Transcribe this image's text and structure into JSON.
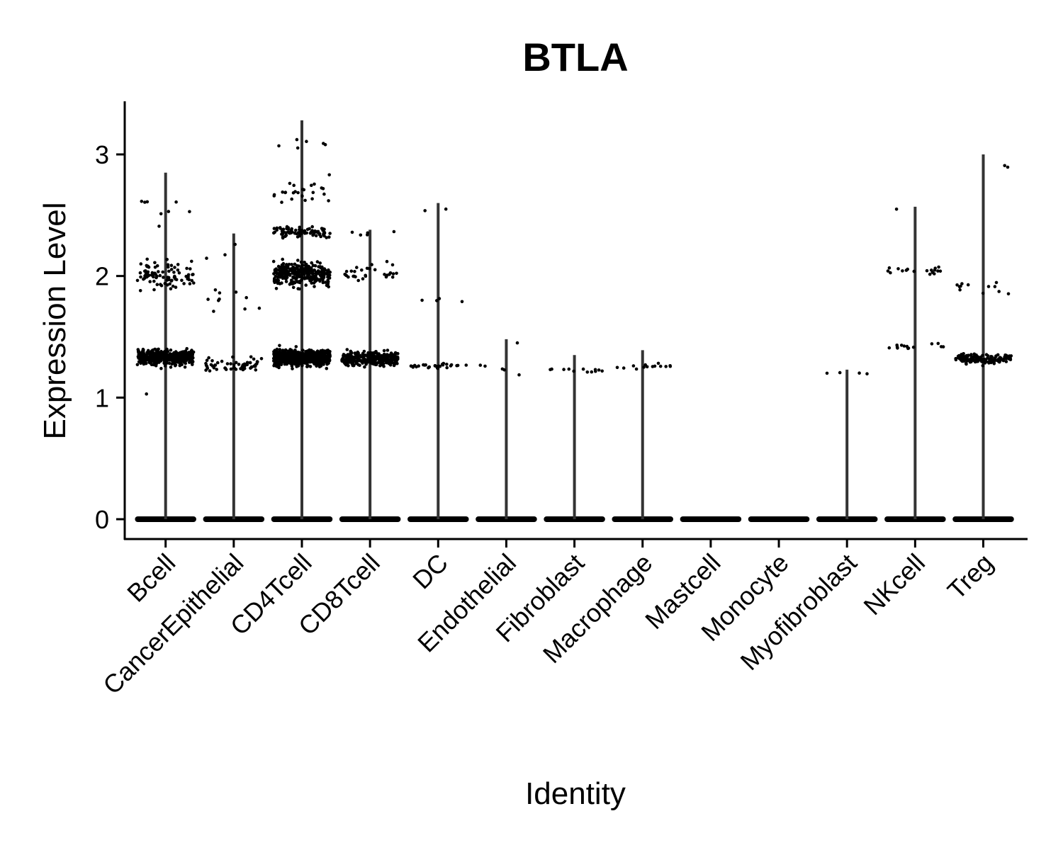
{
  "chart_data": {
    "type": "scatter",
    "subtype": "violin-jitter",
    "title": "BTLA",
    "xlabel": "Identity",
    "ylabel": "Expression Level",
    "ylim": [
      -0.15,
      3.45
    ],
    "yticks": [
      0,
      1,
      2,
      3
    ],
    "grid": false,
    "legend": "none",
    "point_color": "#000000",
    "violin_color": "#333333",
    "categories": [
      "Bcell",
      "CancerEpithelial",
      "CD4Tcell",
      "CD8Tcell",
      "DC",
      "Endothelial",
      "Fibroblast",
      "Macrophage",
      "Mastcell",
      "Monocyte",
      "Myofibroblast",
      "NKcell",
      "Treg"
    ],
    "violin_max": [
      2.85,
      2.35,
      3.28,
      2.38,
      2.6,
      1.48,
      1.35,
      1.39,
      0.0,
      0.0,
      1.23,
      2.57,
      3.0
    ],
    "expression_clusters": [
      [
        {
          "y": 1.33,
          "n": 440,
          "s": 0.12
        },
        {
          "y": 2.0,
          "n": 90,
          "s": 0.22
        },
        {
          "y": 2.55,
          "n": 8,
          "s": 0.25
        },
        {
          "y": 1.03,
          "n": 1,
          "s": 0
        }
      ],
      [
        {
          "y": 1.27,
          "n": 60,
          "s": 0.09
        },
        {
          "y": 1.8,
          "n": 10,
          "s": 0.2
        },
        {
          "y": 2.2,
          "n": 3,
          "s": 0.15
        }
      ],
      [
        {
          "y": 1.33,
          "n": 700,
          "s": 0.12
        },
        {
          "y": 2.02,
          "n": 320,
          "s": 0.18
        },
        {
          "y": 2.36,
          "n": 90,
          "s": 0.08
        },
        {
          "y": 2.7,
          "n": 25,
          "s": 0.2
        },
        {
          "y": 3.1,
          "n": 6,
          "s": 0.15
        }
      ],
      [
        {
          "y": 1.32,
          "n": 300,
          "s": 0.1
        },
        {
          "y": 2.02,
          "n": 30,
          "s": 0.2
        },
        {
          "y": 2.35,
          "n": 5,
          "s": 0.05
        }
      ],
      [
        {
          "y": 1.26,
          "n": 28,
          "s": 0.04
        },
        {
          "y": 1.8,
          "n": 4,
          "s": 0.05
        },
        {
          "y": 2.55,
          "n": 2,
          "s": 0.05
        }
      ],
      [
        {
          "y": 1.25,
          "n": 5,
          "s": 0.1
        },
        {
          "y": 1.45,
          "n": 1,
          "s": 0
        }
      ],
      [
        {
          "y": 1.22,
          "n": 12,
          "s": 0.05
        }
      ],
      [
        {
          "y": 1.26,
          "n": 14,
          "s": 0.05
        }
      ],
      [],
      [],
      [
        {
          "y": 1.2,
          "n": 4,
          "s": 0.02
        }
      ],
      [
        {
          "y": 2.05,
          "n": 18,
          "s": 0.06
        },
        {
          "y": 1.42,
          "n": 14,
          "s": 0.05
        },
        {
          "y": 2.55,
          "n": 1,
          "s": 0
        }
      ],
      [
        {
          "y": 1.32,
          "n": 140,
          "s": 0.08
        },
        {
          "y": 1.9,
          "n": 12,
          "s": 0.15
        },
        {
          "y": 2.9,
          "n": 2,
          "s": 0.1
        }
      ]
    ]
  }
}
